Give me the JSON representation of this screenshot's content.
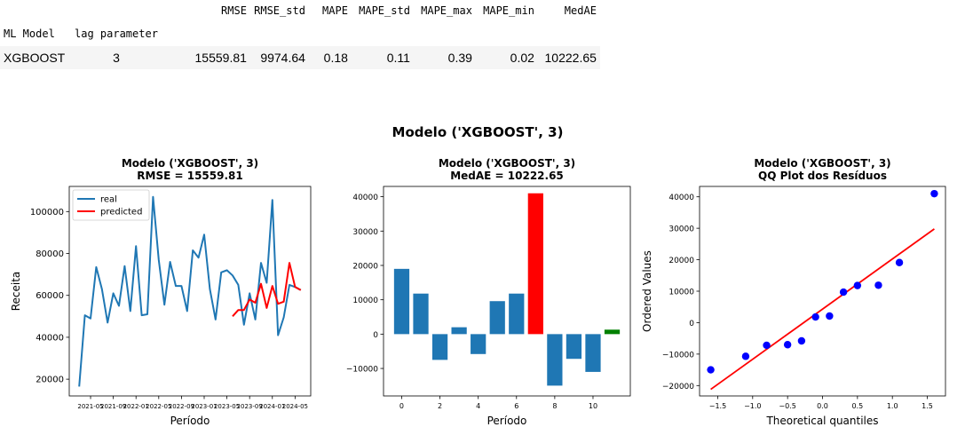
{
  "table": {
    "columns": [
      "RMSE",
      "RMSE_std",
      "MAPE",
      "MAPE_std",
      "MAPE_max",
      "MAPE_min",
      "MedAE"
    ],
    "index_names": [
      "ML Model",
      "lag parameter"
    ],
    "row": {
      "model": "XGBOOST",
      "lag": "3",
      "values": [
        "15559.81",
        "9974.64",
        "0.18",
        "0.11",
        "0.39",
        "0.02",
        "10222.65"
      ]
    }
  },
  "figure": {
    "suptitle": "Modelo ('XGBOOST', 3)"
  },
  "chart_data": [
    {
      "type": "line",
      "title": "Modelo ('XGBOOST', 3)\nRMSE = 15559.81",
      "title_lines": [
        "Modelo ('XGBOOST', 3)",
        "RMSE = 15559.81"
      ],
      "xlabel": "Período",
      "ylabel": "Receita",
      "x_tick_labels": [
        "2021-05",
        "2021-09",
        "2022-01",
        "2022-05",
        "2022-09",
        "2023-01",
        "2023-05",
        "2023-09",
        "2024-01",
        "2024-05"
      ],
      "y_ticks": [
        20000,
        40000,
        60000,
        80000,
        100000
      ],
      "y_tick_labels": [
        "20000",
        "40000",
        "60000",
        "80000",
        "100000"
      ],
      "ylim": [
        12000,
        112000
      ],
      "legend": [
        "real",
        "predicted"
      ],
      "legend_position": "upper left",
      "series": [
        {
          "name": "real",
          "color": "#1f77b4",
          "x": [
            "2021-03",
            "2021-04",
            "2021-05",
            "2021-06",
            "2021-07",
            "2021-08",
            "2021-09",
            "2021-10",
            "2021-11",
            "2021-12",
            "2022-01",
            "2022-02",
            "2022-03",
            "2022-04",
            "2022-05",
            "2022-06",
            "2022-07",
            "2022-08",
            "2022-09",
            "2022-10",
            "2022-11",
            "2022-12",
            "2023-01",
            "2023-02",
            "2023-03",
            "2023-04",
            "2023-05",
            "2023-06",
            "2023-07",
            "2023-08",
            "2023-09",
            "2023-10",
            "2023-11",
            "2023-12",
            "2024-01",
            "2024-02",
            "2024-03",
            "2024-04",
            "2024-05",
            "2024-06"
          ],
          "values": [
            16500,
            50500,
            49000,
            73500,
            63000,
            47000,
            61000,
            55000,
            74000,
            52500,
            83500,
            50500,
            51000,
            107000,
            77000,
            55500,
            76000,
            64500,
            64500,
            52500,
            81500,
            78000,
            89000,
            63000,
            48500,
            71000,
            72000,
            69500,
            65000,
            46000,
            61000,
            48500,
            75500,
            66000,
            105500,
            41000,
            49500,
            65000,
            64000,
            62500
          ]
        },
        {
          "name": "predicted",
          "color": "#ff0000",
          "x": [
            "2023-06",
            "2023-07",
            "2023-08",
            "2023-09",
            "2023-10",
            "2023-11",
            "2023-12",
            "2024-01",
            "2024-02",
            "2024-03",
            "2024-04",
            "2024-05",
            "2024-06"
          ],
          "values": [
            50000,
            53000,
            53000,
            58000,
            56500,
            65500,
            54000,
            64500,
            56000,
            57000,
            75500,
            64000,
            62500
          ]
        }
      ]
    },
    {
      "type": "bar",
      "title": "Modelo ('XGBOOST', 3)\nMedAE = 10222.65",
      "title_lines": [
        "Modelo ('XGBOOST', 3)",
        "MedAE = 10222.65"
      ],
      "xlabel": "Período",
      "ylabel": "",
      "x": [
        0,
        1,
        2,
        3,
        4,
        5,
        6,
        7,
        8,
        9,
        10,
        11
      ],
      "values": [
        19000,
        11800,
        -7500,
        2000,
        -5800,
        9600,
        11800,
        41000,
        -15000,
        -7200,
        -11000,
        1300
      ],
      "colors": [
        "#1f77b4",
        "#1f77b4",
        "#1f77b4",
        "#1f77b4",
        "#1f77b4",
        "#1f77b4",
        "#1f77b4",
        "#ff0000",
        "#1f77b4",
        "#1f77b4",
        "#1f77b4",
        "#008000"
      ],
      "x_ticks": [
        0,
        2,
        4,
        6,
        8,
        10
      ],
      "x_tick_labels": [
        "0",
        "2",
        "4",
        "6",
        "8",
        "10"
      ],
      "y_ticks": [
        -10000,
        0,
        10000,
        20000,
        30000,
        40000
      ],
      "y_tick_labels": [
        "−10000",
        "0",
        "10000",
        "20000",
        "30000",
        "40000"
      ],
      "xlim": [
        -0.95,
        11.95
      ],
      "ylim": [
        -18000,
        43000
      ]
    },
    {
      "type": "scatter",
      "title": "Modelo ('XGBOOST', 3)\nQQ Plot dos Resíduos",
      "title_lines": [
        "Modelo ('XGBOOST', 3)",
        "QQ Plot dos Resíduos"
      ],
      "xlabel": "Theoretical quantiles",
      "ylabel": "Ordered Values",
      "points": [
        {
          "x": -1.6,
          "y": -15000
        },
        {
          "x": -1.1,
          "y": -10700
        },
        {
          "x": -0.8,
          "y": -7200
        },
        {
          "x": -0.5,
          "y": -7000
        },
        {
          "x": -0.3,
          "y": -5800
        },
        {
          "x": -0.1,
          "y": 1800
        },
        {
          "x": 0.1,
          "y": 2100
        },
        {
          "x": 0.3,
          "y": 9700
        },
        {
          "x": 0.5,
          "y": 11800
        },
        {
          "x": 0.8,
          "y": 11900
        },
        {
          "x": 1.1,
          "y": 19100
        },
        {
          "x": 1.6,
          "y": 41000
        }
      ],
      "point_color": "#0000ff",
      "fit_line": {
        "x": [
          -1.6,
          1.6
        ],
        "y": [
          -21200,
          29800
        ],
        "color": "#ff0000"
      },
      "x_ticks": [
        -1.5,
        -1.0,
        -0.5,
        0.0,
        0.5,
        1.0,
        1.5
      ],
      "x_tick_labels": [
        "−1.5",
        "−1.0",
        "−0.5",
        "0.0",
        "0.5",
        "1.0",
        "1.5"
      ],
      "y_ticks": [
        -20000,
        -10000,
        0,
        10000,
        20000,
        30000,
        40000
      ],
      "y_tick_labels": [
        "−20000",
        "−10000",
        "0",
        "10000",
        "20000",
        "30000",
        "40000"
      ],
      "xlim": [
        -1.76,
        1.76
      ],
      "ylim": [
        -23300,
        43300
      ]
    }
  ]
}
